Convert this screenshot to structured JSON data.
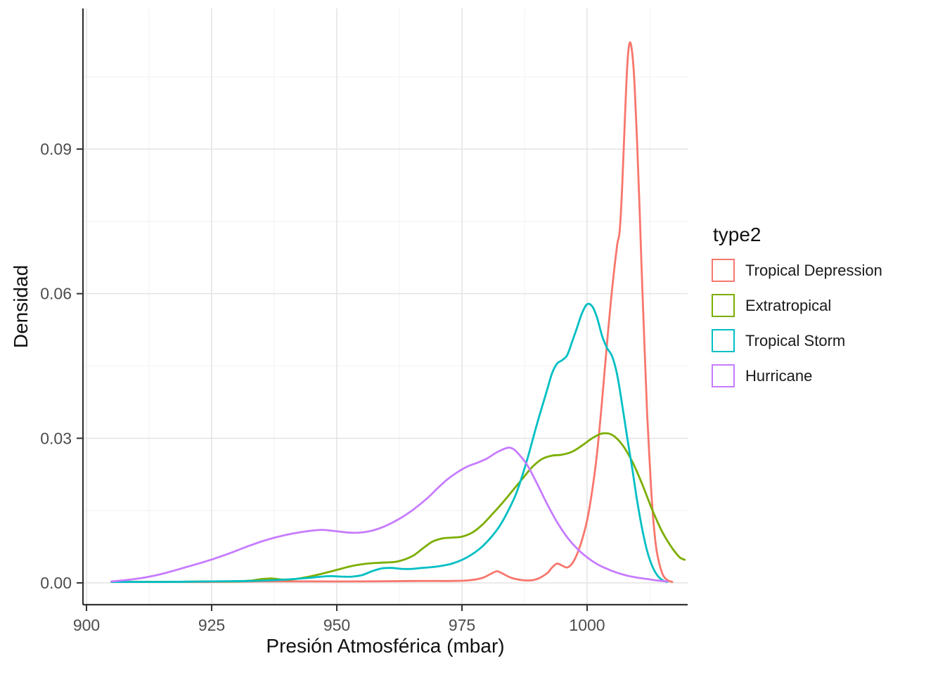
{
  "chart_data": {
    "type": "line",
    "subtype": "density",
    "title": "",
    "xlabel": "Presión Atmosférica (mbar)",
    "ylabel": "Densidad",
    "legend_title": "type2",
    "legend_position": "right",
    "grid": true,
    "xlim": [
      899,
      1020
    ],
    "ylim": [
      0,
      0.1135
    ],
    "x_ticks": [
      900,
      925,
      950,
      975,
      1000
    ],
    "x_tick_labels": [
      "900",
      "925",
      "950",
      "975",
      "1000"
    ],
    "x_minor_ticks": [
      912.5,
      937.5,
      962.5,
      987.5,
      1012.5
    ],
    "y_ticks": [
      0,
      0.03,
      0.06,
      0.09
    ],
    "y_tick_labels": [
      "0.00",
      "0.03",
      "0.06",
      "0.09"
    ],
    "y_minor_ticks": [
      0.015,
      0.045,
      0.075,
      0.105
    ],
    "colors": {
      "axis_line": "#333333",
      "tick_mark": "#333333",
      "tick_label": "#4d4d4d",
      "grid_major": "#e4e4e4",
      "grid_minor": "#f2f2f2",
      "title_text": "#111111"
    },
    "series": [
      {
        "name": "Tropical Depression",
        "color": "#F8766D",
        "points": [
          [
            905,
            0.0002
          ],
          [
            915,
            0.0002
          ],
          [
            925,
            0.0002
          ],
          [
            935,
            0.0003
          ],
          [
            945,
            0.0003
          ],
          [
            955,
            0.0003
          ],
          [
            965,
            0.0004
          ],
          [
            972,
            0.0004
          ],
          [
            976,
            0.0005
          ],
          [
            979,
            0.001
          ],
          [
            981,
            0.002
          ],
          [
            982,
            0.0024
          ],
          [
            983,
            0.002
          ],
          [
            985,
            0.001
          ],
          [
            988,
            0.0005
          ],
          [
            990,
            0.0008
          ],
          [
            992,
            0.002
          ],
          [
            993,
            0.0032
          ],
          [
            994,
            0.004
          ],
          [
            995,
            0.0036
          ],
          [
            996,
            0.0032
          ],
          [
            997,
            0.004
          ],
          [
            998,
            0.006
          ],
          [
            999,
            0.009
          ],
          [
            1000,
            0.013
          ],
          [
            1001,
            0.019
          ],
          [
            1002,
            0.027
          ],
          [
            1003,
            0.038
          ],
          [
            1004,
            0.05
          ],
          [
            1005,
            0.061
          ],
          [
            1006,
            0.07
          ],
          [
            1006.5,
            0.073
          ],
          [
            1007,
            0.082
          ],
          [
            1007.5,
            0.095
          ],
          [
            1008,
            0.107
          ],
          [
            1008.5,
            0.112
          ],
          [
            1009,
            0.11
          ],
          [
            1009.5,
            0.103
          ],
          [
            1010,
            0.091
          ],
          [
            1010.5,
            0.077
          ],
          [
            1011,
            0.062
          ],
          [
            1011.5,
            0.048
          ],
          [
            1012,
            0.035
          ],
          [
            1012.5,
            0.025
          ],
          [
            1013,
            0.016
          ],
          [
            1013.5,
            0.01
          ],
          [
            1014,
            0.006
          ],
          [
            1015,
            0.002
          ],
          [
            1016,
            0.0006
          ],
          [
            1017,
            0.0002
          ]
        ]
      },
      {
        "name": "Extratropical",
        "color": "#7CAE00",
        "points": [
          [
            905,
            0.0002
          ],
          [
            915,
            0.0002
          ],
          [
            925,
            0.0003
          ],
          [
            930,
            0.0003
          ],
          [
            933,
            0.0005
          ],
          [
            935,
            0.0008
          ],
          [
            937,
            0.0009
          ],
          [
            939,
            0.0007
          ],
          [
            941,
            0.0007
          ],
          [
            944,
            0.0012
          ],
          [
            947,
            0.0019
          ],
          [
            950,
            0.0027
          ],
          [
            953,
            0.0035
          ],
          [
            956,
            0.004
          ],
          [
            959,
            0.0042
          ],
          [
            962,
            0.0044
          ],
          [
            965,
            0.0055
          ],
          [
            967,
            0.007
          ],
          [
            969,
            0.0085
          ],
          [
            971,
            0.0092
          ],
          [
            973,
            0.0094
          ],
          [
            975,
            0.0096
          ],
          [
            977,
            0.0104
          ],
          [
            979,
            0.012
          ],
          [
            981,
            0.0142
          ],
          [
            983,
            0.0165
          ],
          [
            985,
            0.019
          ],
          [
            987,
            0.0215
          ],
          [
            989,
            0.024
          ],
          [
            991,
            0.0257
          ],
          [
            993,
            0.0264
          ],
          [
            995,
            0.0266
          ],
          [
            997,
            0.0272
          ],
          [
            999,
            0.0285
          ],
          [
            1001,
            0.03
          ],
          [
            1003,
            0.031
          ],
          [
            1005,
            0.0307
          ],
          [
            1007,
            0.0287
          ],
          [
            1009,
            0.0252
          ],
          [
            1011,
            0.0205
          ],
          [
            1013,
            0.0152
          ],
          [
            1015,
            0.0106
          ],
          [
            1017,
            0.0072
          ],
          [
            1018.5,
            0.0053
          ],
          [
            1019.5,
            0.0048
          ]
        ]
      },
      {
        "name": "Tropical Storm",
        "color": "#00BFC4",
        "points": [
          [
            905,
            0.0002
          ],
          [
            915,
            0.0002
          ],
          [
            925,
            0.0003
          ],
          [
            932,
            0.0004
          ],
          [
            936,
            0.0005
          ],
          [
            940,
            0.0007
          ],
          [
            944,
            0.001
          ],
          [
            947,
            0.0013
          ],
          [
            949,
            0.0014
          ],
          [
            951,
            0.0013
          ],
          [
            953,
            0.0013
          ],
          [
            955,
            0.0016
          ],
          [
            957,
            0.0024
          ],
          [
            959,
            0.003
          ],
          [
            961,
            0.0031
          ],
          [
            963,
            0.0029
          ],
          [
            965,
            0.0029
          ],
          [
            967,
            0.0031
          ],
          [
            970,
            0.0034
          ],
          [
            973,
            0.004
          ],
          [
            976,
            0.0053
          ],
          [
            979,
            0.0075
          ],
          [
            982,
            0.011
          ],
          [
            984,
            0.0145
          ],
          [
            986,
            0.019
          ],
          [
            988,
            0.0255
          ],
          [
            990,
            0.033
          ],
          [
            992,
            0.04
          ],
          [
            993,
            0.0435
          ],
          [
            994,
            0.0455
          ],
          [
            995,
            0.0462
          ],
          [
            996,
            0.0472
          ],
          [
            997,
            0.05
          ],
          [
            998,
            0.053
          ],
          [
            999,
            0.056
          ],
          [
            1000,
            0.0578
          ],
          [
            1001,
            0.0574
          ],
          [
            1002,
            0.055
          ],
          [
            1003,
            0.0512
          ],
          [
            1004,
            0.0487
          ],
          [
            1005,
            0.047
          ],
          [
            1006,
            0.0432
          ],
          [
            1007,
            0.037
          ],
          [
            1008,
            0.0302
          ],
          [
            1009,
            0.0238
          ],
          [
            1010,
            0.017
          ],
          [
            1011,
            0.0112
          ],
          [
            1012,
            0.0066
          ],
          [
            1013,
            0.0035
          ],
          [
            1014,
            0.0016
          ],
          [
            1015,
            0.0006
          ],
          [
            1016,
            0.0002
          ]
        ]
      },
      {
        "name": "Hurricane",
        "color": "#C77CFF",
        "points": [
          [
            905,
            0.0003
          ],
          [
            908,
            0.0006
          ],
          [
            911,
            0.001
          ],
          [
            914,
            0.0016
          ],
          [
            917,
            0.0024
          ],
          [
            920,
            0.0033
          ],
          [
            923,
            0.0042
          ],
          [
            926,
            0.0052
          ],
          [
            929,
            0.0063
          ],
          [
            932,
            0.0075
          ],
          [
            935,
            0.0086
          ],
          [
            938,
            0.0095
          ],
          [
            941,
            0.0102
          ],
          [
            944,
            0.0107
          ],
          [
            947,
            0.011
          ],
          [
            950,
            0.0107
          ],
          [
            953,
            0.0104
          ],
          [
            956,
            0.0106
          ],
          [
            959,
            0.0115
          ],
          [
            962,
            0.013
          ],
          [
            965,
            0.015
          ],
          [
            968,
            0.0175
          ],
          [
            970,
            0.0195
          ],
          [
            972,
            0.0214
          ],
          [
            974,
            0.0229
          ],
          [
            976,
            0.0241
          ],
          [
            978,
            0.0249
          ],
          [
            980,
            0.0258
          ],
          [
            982,
            0.0271
          ],
          [
            984,
            0.028
          ],
          [
            985,
            0.0279
          ],
          [
            986,
            0.0271
          ],
          [
            988,
            0.0245
          ],
          [
            990,
            0.0206
          ],
          [
            992,
            0.0164
          ],
          [
            994,
            0.0126
          ],
          [
            996,
            0.0095
          ],
          [
            998,
            0.0071
          ],
          [
            1000,
            0.0053
          ],
          [
            1002,
            0.0039
          ],
          [
            1004,
            0.0029
          ],
          [
            1006,
            0.0021
          ],
          [
            1008,
            0.0015
          ],
          [
            1010,
            0.0011
          ],
          [
            1012,
            0.0008
          ],
          [
            1014,
            0.0005
          ],
          [
            1016,
            0.0003
          ]
        ]
      }
    ]
  }
}
